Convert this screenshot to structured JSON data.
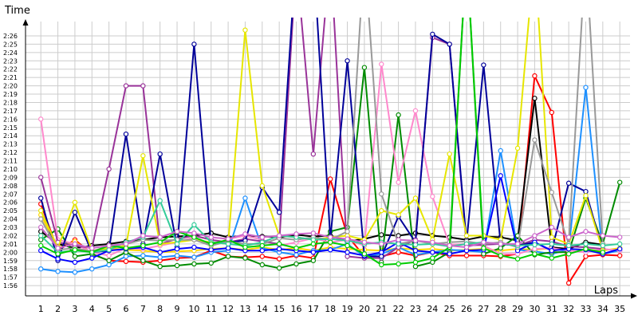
{
  "chart_data": {
    "type": "line",
    "xlabel": "Laps",
    "ylabel": "Time",
    "x": [
      1,
      2,
      3,
      4,
      5,
      6,
      7,
      8,
      9,
      10,
      11,
      12,
      13,
      14,
      15,
      16,
      17,
      18,
      19,
      20,
      21,
      22,
      23,
      24,
      25,
      26,
      27,
      28,
      29,
      30,
      31,
      32,
      33,
      34,
      35
    ],
    "xlim": [
      0.1,
      35.6
    ],
    "ylim": [
      115,
      150
    ],
    "grid": true,
    "y_ticks": [
      {
        "value": 116,
        "label": "1:56"
      },
      {
        "value": 117,
        "label": "1:57"
      },
      {
        "value": 118,
        "label": "1:58"
      },
      {
        "value": 119,
        "label": "1:59"
      },
      {
        "value": 120,
        "label": "2:00"
      },
      {
        "value": 121,
        "label": "2:01"
      },
      {
        "value": 122,
        "label": "2:02"
      },
      {
        "value": 123,
        "label": "2:03"
      },
      {
        "value": 124,
        "label": "2:04"
      },
      {
        "value": 125,
        "label": "2:05"
      },
      {
        "value": 126,
        "label": "2:06"
      },
      {
        "value": 127,
        "label": "2:07"
      },
      {
        "value": 128,
        "label": "2:08"
      },
      {
        "value": 129,
        "label": "2:09"
      },
      {
        "value": 130,
        "label": "2:10"
      },
      {
        "value": 131,
        "label": "2:11"
      },
      {
        "value": 132,
        "label": "2:12"
      },
      {
        "value": 133,
        "label": "2:13"
      },
      {
        "value": 134,
        "label": "2:14"
      },
      {
        "value": 135,
        "label": "2:15"
      },
      {
        "value": 136,
        "label": "2:16"
      },
      {
        "value": 137,
        "label": "2:17"
      },
      {
        "value": 138,
        "label": "2:18"
      },
      {
        "value": 139,
        "label": "2:19"
      },
      {
        "value": 140,
        "label": "2:20"
      },
      {
        "value": 141,
        "label": "2:21"
      },
      {
        "value": 142,
        "label": "2:22"
      },
      {
        "value": 143,
        "label": "2:23"
      },
      {
        "value": 144,
        "label": "2:24"
      },
      {
        "value": 145,
        "label": "2:25"
      },
      {
        "value": 146,
        "label": "2:26"
      }
    ],
    "series": [
      {
        "color": "#ff0000",
        "values": [
          125.8,
          120.2,
          121.5,
          119.8,
          119.0,
          118.9,
          118.8,
          119.0,
          119.3,
          119.4,
          120.2,
          119.5,
          119.4,
          119.5,
          119.2,
          119.6,
          119.3,
          128.8,
          122.0,
          119.5,
          119.5,
          120.0,
          119.6,
          120.0,
          119.6,
          119.6,
          119.6,
          119.5,
          119.8,
          141.2,
          136.8,
          116.3,
          119.5,
          119.7,
          119.6
        ]
      },
      {
        "color": "#ffd700",
        "values": [
          124.5,
          120.5,
          121.3,
          119.9,
          120.5,
          120.3,
          120.2,
          120.0,
          120.1,
          120.2,
          120.4,
          120.5,
          120.3,
          120.6,
          120.3,
          120.5,
          120.2,
          120.6,
          120.4,
          120.3,
          120.2,
          120.5,
          120.3,
          120.4,
          120.2,
          120.3,
          120.4,
          120.2,
          120.4,
          120.3,
          120.5,
          120.4,
          120.3,
          120.2,
          120.5
        ]
      },
      {
        "color": "#000000",
        "values": [
          122.5,
          121.0,
          120.5,
          120.8,
          121.0,
          121.3,
          121.5,
          121.8,
          121.9,
          122.0,
          122.3,
          121.8,
          122.0,
          121.9,
          121.8,
          122.1,
          121.9,
          122.0,
          121.3,
          121.6,
          122.1,
          122.0,
          122.3,
          122.0,
          121.8,
          121.5,
          121.9,
          121.8,
          121.4,
          138.5,
          120.6,
          120.4,
          121.2,
          120.9,
          null
        ]
      },
      {
        "color": "#1e90ff",
        "values": [
          118.0,
          117.7,
          117.6,
          118.0,
          118.5,
          119.5,
          119.6,
          119.4,
          119.6,
          119.4,
          120.0,
          120.2,
          126.5,
          120.5,
          120.0,
          119.7,
          120.2,
          120.3,
          121.0,
          119.5,
          119.8,
          120.6,
          119.7,
          120.0,
          120.3,
          120.2,
          120.0,
          132.2,
          120.3,
          120.1,
          119.8,
          120.3,
          139.8,
          119.8,
          120.2
        ]
      },
      {
        "color": "#008b00",
        "values": [
          121.5,
          122.8,
          119.5,
          119.8,
          119.0,
          120.0,
          119.0,
          118.3,
          118.4,
          118.6,
          118.7,
          119.5,
          119.3,
          118.5,
          118.1,
          118.6,
          119.0,
          122.5,
          123.0,
          142.2,
          118.8,
          136.5,
          118.3,
          118.8,
          120.0,
          156.0,
          119.8,
          120.5,
          122.0,
          119.7,
          120.0,
          120.0,
          126.5,
          121.0,
          128.4
        ]
      },
      {
        "color": "#ff88cc",
        "values": [
          136.0,
          121.5,
          121.0,
          120.0,
          119.6,
          120.5,
          120.4,
          120.8,
          121.2,
          121.8,
          120.8,
          121.6,
          122.0,
          121.5,
          120.8,
          121.2,
          121.7,
          121.2,
          121.5,
          120.8,
          142.6,
          128.4,
          137.0,
          126.7,
          120.9,
          121.0,
          120.8,
          119.8,
          119.8,
          120.4,
          120.5,
          120.2,
          120.0,
          120.4,
          120.2
        ]
      },
      {
        "color": "#993399",
        "values": [
          129.0,
          121.2,
          120.8,
          120.5,
          130.0,
          140.0,
          140.0,
          121.0,
          121.6,
          122.0,
          121.5,
          121.2,
          121.6,
          121.3,
          121.0,
          155.0,
          131.8,
          156.0,
          119.5,
          119.3,
          119.3,
          120.6,
          121.5,
          145.8,
          145.0,
          120.8,
          120.9,
          121.0,
          120.8,
          121.5,
          121.3,
          120.7,
          120.6,
          120.4,
          null
        ]
      },
      {
        "color": "#000099",
        "values": [
          126.5,
          119.0,
          124.8,
          120.0,
          120.2,
          134.2,
          121.0,
          131.8,
          120.6,
          145.0,
          121.0,
          121.2,
          121.4,
          127.8,
          124.8,
          156.0,
          156.0,
          121.6,
          143.0,
          119.5,
          119.5,
          124.3,
          121.2,
          146.2,
          145.0,
          121.2,
          142.5,
          121.0,
          120.8,
          121.2,
          120.2,
          128.3,
          127.3,
          120.2,
          null
        ]
      },
      {
        "color": "#0000ff",
        "values": [
          120.2,
          119.2,
          118.8,
          119.3,
          120.2,
          120.4,
          120.6,
          120.0,
          120.4,
          120.6,
          120.3,
          120.5,
          120.2,
          120.2,
          120.4,
          120.2,
          120.0,
          120.3,
          120.0,
          119.6,
          120.0,
          121.2,
          120.2,
          120.0,
          119.8,
          120.2,
          120.3,
          129.2,
          120.2,
          121.2,
          120.2,
          120.4,
          120.3,
          119.8,
          120.4
        ]
      },
      {
        "color": "#e6e600",
        "values": [
          125.0,
          120.5,
          126.0,
          120.2,
          120.5,
          120.8,
          131.6,
          121.0,
          121.2,
          121.5,
          121.2,
          121.0,
          146.7,
          128.0,
          122.0,
          121.8,
          121.5,
          121.8,
          122.0,
          121.5,
          125.0,
          124.5,
          126.5,
          121.5,
          131.8,
          122.0,
          122.0,
          121.5,
          132.5,
          156.0,
          121.8,
          121.0,
          126.8,
          120.2,
          null
        ]
      },
      {
        "color": "#999999",
        "values": [
          124.0,
          120.3,
          120.5,
          120.1,
          120.8,
          121.0,
          121.5,
          121.4,
          121.5,
          121.5,
          120.8,
          121.3,
          121.0,
          121.0,
          121.7,
          121.5,
          121.8,
          121.5,
          122.5,
          156.0,
          127.0,
          121.0,
          121.4,
          121.0,
          121.2,
          121.3,
          121.0,
          121.2,
          120.6,
          133.5,
          127.2,
          121.0,
          156.0,
          121.0,
          null
        ]
      },
      {
        "color": "#33cc99",
        "values": [
          122.0,
          120.0,
          120.2,
          120.0,
          120.3,
          121.2,
          121.8,
          126.2,
          121.0,
          123.3,
          121.2,
          121.0,
          120.8,
          121.2,
          122.0,
          121.8,
          121.5,
          121.6,
          121.4,
          121.0,
          121.2,
          121.0,
          120.9,
          121.0,
          120.7,
          121.0,
          121.2,
          121.0,
          120.8,
          120.9,
          121.0,
          120.8,
          121.0,
          120.8,
          121.0
        ]
      },
      {
        "color": "#00cc00",
        "values": [
          120.8,
          119.8,
          120.3,
          120.0,
          120.8,
          120.5,
          120.8,
          121.2,
          122.5,
          121.8,
          121.0,
          121.5,
          120.6,
          120.8,
          121.0,
          120.5,
          121.0,
          121.2,
          120.8,
          119.8,
          118.5,
          118.6,
          118.8,
          119.3,
          120.6,
          156.0,
          120.5,
          119.6,
          119.2,
          119.8,
          119.3,
          119.8,
          120.4,
          120.0,
          null
        ]
      },
      {
        "color": "#cc66cc",
        "values": [
          123.0,
          120.5,
          121.0,
          120.5,
          120.8,
          121.0,
          122.0,
          121.8,
          122.5,
          122.3,
          121.8,
          121.6,
          122.2,
          121.8,
          122.0,
          122.2,
          122.3,
          121.8,
          121.6,
          121.2,
          121.0,
          121.5,
          121.4,
          121.2,
          120.8,
          120.6,
          121.2,
          121.0,
          121.0,
          122.0,
          123.0,
          121.8,
          122.5,
          122.0,
          121.8
        ]
      }
    ]
  }
}
